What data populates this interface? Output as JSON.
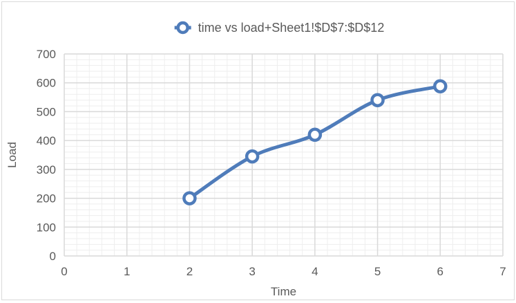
{
  "chart_data": {
    "type": "scatter",
    "title": "",
    "legend_position": "top",
    "series": [
      {
        "name": "time  vs load+Sheet1!$D$7:$D$12",
        "x": [
          2,
          3,
          4,
          5,
          6
        ],
        "y": [
          200,
          345,
          420,
          540,
          588
        ],
        "line": "smooth",
        "marker": "circle",
        "color": "#4f7cba"
      }
    ],
    "xlabel": "Time",
    "ylabel": "Load",
    "xlim": [
      0,
      7
    ],
    "ylim": [
      0,
      700
    ],
    "xticks": [
      "0",
      "1",
      "2",
      "3",
      "4",
      "5",
      "6",
      "7"
    ],
    "yticks": [
      "0",
      "100",
      "200",
      "300",
      "400",
      "500",
      "600",
      "700"
    ],
    "grid": true,
    "minor_grid": true
  }
}
